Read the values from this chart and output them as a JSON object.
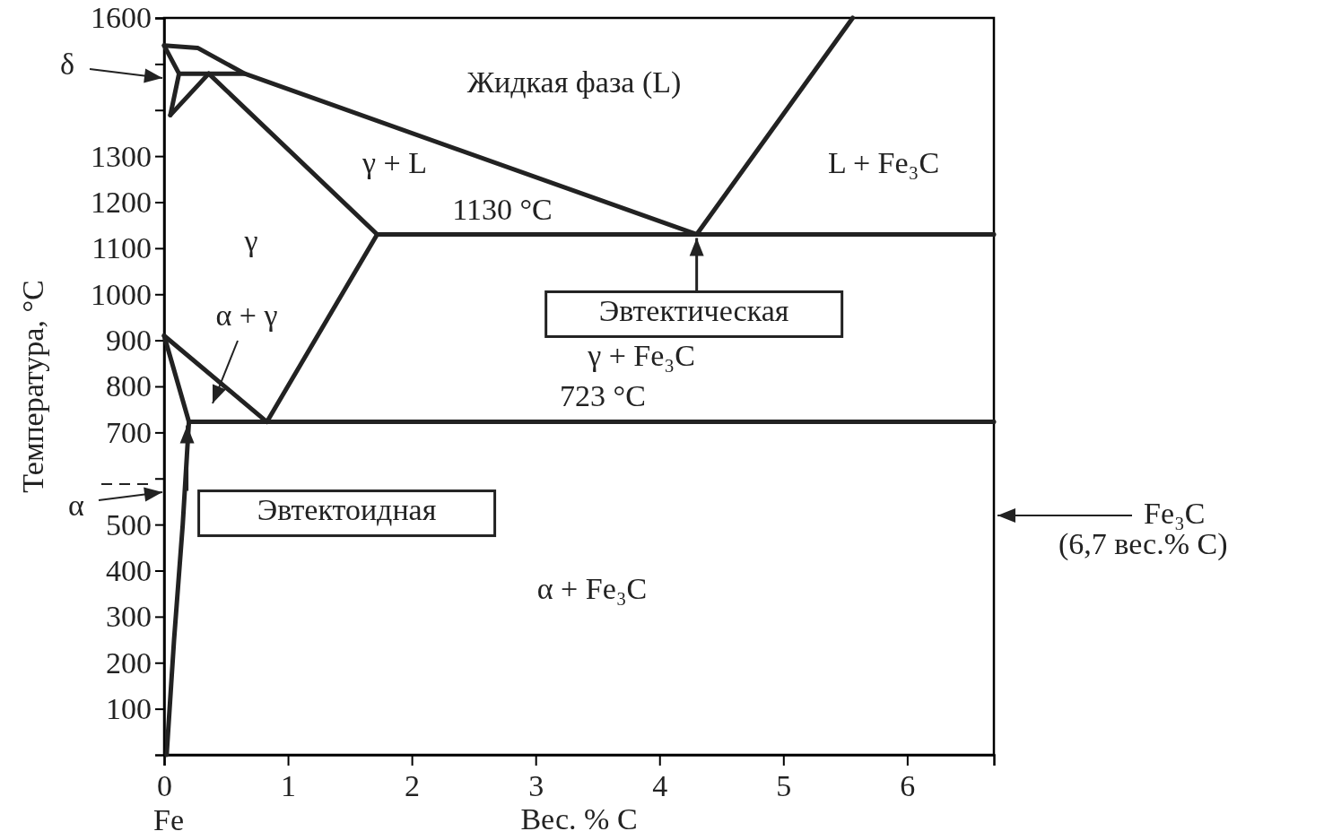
{
  "chart_data": {
    "type": "line",
    "xlabel": "Вес. % C",
    "ylabel": "Температура, °C",
    "xlim": [
      0,
      6.7
    ],
    "ylim": [
      0,
      1600
    ],
    "xticks": [
      0,
      1,
      2,
      3,
      4,
      5,
      6
    ],
    "yticks": [
      100,
      200,
      300,
      400,
      500,
      {
        "value": 600,
        "label": null
      },
      700,
      800,
      900,
      1000,
      1100,
      1200,
      1300,
      {
        "value": 1400,
        "label": null
      },
      {
        "value": 1500,
        "label": null
      },
      1600
    ],
    "line_style": "solid",
    "series": [
      {
        "color": "#222222",
        "x": [
          0,
          0.27,
          0.65,
          4.3
        ],
        "values": [
          1540,
          1535,
          1479,
          1130
        ]
      },
      {
        "color": "#222222",
        "x": [
          4.3,
          5.56
        ],
        "values": [
          1130,
          1600
        ]
      },
      {
        "color": "#222222",
        "x": [
          0.36,
          1.72
        ],
        "values": [
          1479,
          1130
        ]
      },
      {
        "color": "#222222",
        "x": [
          1.72,
          0.83
        ],
        "values": [
          1130,
          723
        ]
      },
      {
        "color": "#222222",
        "x": [
          0,
          0.83
        ],
        "values": [
          910,
          723
        ]
      },
      {
        "color": "#222222",
        "x": [
          0,
          0.2,
          0.15,
          0.08,
          0.02
        ],
        "values": [
          910,
          723,
          500,
          250,
          0
        ]
      },
      {
        "color": "#222222",
        "x": [
          1.72,
          6.7
        ],
        "values": [
          1130,
          1130
        ]
      },
      {
        "color": "#222222",
        "x": [
          0.2,
          6.7
        ],
        "values": [
          723,
          723
        ]
      },
      {
        "color": "#222222",
        "x": [
          0,
          0.12,
          0.05
        ],
        "values": [
          1540,
          1479,
          1389
        ]
      },
      {
        "color": "#222222",
        "x": [
          0.05,
          0.36
        ],
        "values": [
          1389,
          1479
        ]
      },
      {
        "color": "#222222",
        "x": [
          0.12,
          0.65
        ],
        "values": [
          1479,
          1479
        ]
      }
    ],
    "annotations": [
      "Жидкая фаза (L)",
      "L + Fe₃C",
      "γ + L",
      "1130 °C",
      "γ",
      "α + γ",
      "γ + Fe₃C",
      "723 °C",
      "α + Fe₃C",
      "δ",
      "α",
      {
        "text": "Эвтектическая",
        "x": 4.3,
        "y": 1130
      },
      {
        "text": "Эвтектоидная",
        "x": 0.83,
        "y": 723
      },
      "Fe₃C",
      "(6,7 вес.% C)",
      "Fe"
    ]
  }
}
